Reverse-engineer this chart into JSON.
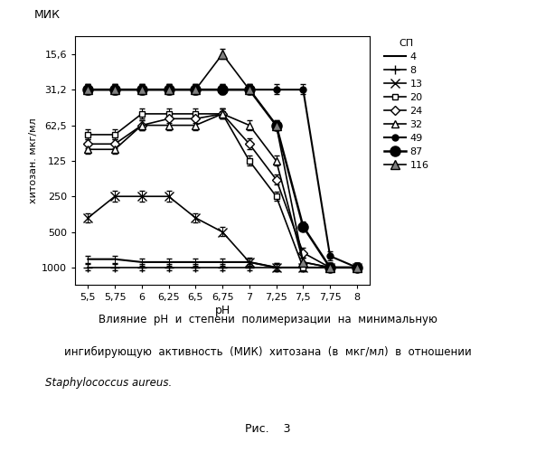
{
  "title_top": "МИК",
  "ylabel": "хитозан. мкг/мл",
  "xlabel": "pH",
  "legend_title": "СП",
  "yticks": [
    15.6,
    31.2,
    62.5,
    125,
    250,
    500,
    1000
  ],
  "ytick_labels": [
    "15,6",
    "31,2",
    "62,5",
    "125",
    "250",
    "500",
    "1000"
  ],
  "xticks": [
    5.5,
    5.75,
    6.0,
    6.25,
    6.5,
    6.75,
    7.0,
    7.25,
    7.5,
    7.75,
    8.0
  ],
  "xtick_labels": [
    "5,5",
    "5,75",
    "6",
    "6,25",
    "6,5",
    "6,75",
    "7",
    "7,25",
    "7,5",
    "7,75",
    "8"
  ],
  "caption_line1": "Влияние  pH  и  степени  полимеризации  на  минимальную",
  "caption_line2": "ингибирующую  активность  (МИК)  хитозана  (в  мкг/мл)  в  отношении",
  "caption_line3": "Staphylococcus aureus.",
  "fig_label": "Рис.    3",
  "series": [
    {
      "label": "4",
      "marker": "None",
      "markerfacecolor": "white",
      "markersize": 5,
      "linewidth": 1.5,
      "x": [
        5.5,
        5.75,
        6.0,
        6.25,
        6.5,
        6.75,
        7.0,
        7.25,
        7.5,
        7.75,
        8.0
      ],
      "y": [
        850,
        850,
        900,
        900,
        900,
        900,
        900,
        1000,
        1000,
        1000,
        1000
      ],
      "yerr": [
        60,
        60,
        60,
        60,
        60,
        60,
        60,
        80,
        80,
        80,
        80
      ]
    },
    {
      "label": "8",
      "marker": "+",
      "markerfacecolor": "white",
      "markersize": 7,
      "linewidth": 1.2,
      "x": [
        5.5,
        5.75,
        6.0,
        6.25,
        6.5,
        6.75,
        7.0,
        7.25,
        7.5,
        7.75,
        8.0
      ],
      "y": [
        1000,
        1000,
        1000,
        1000,
        1000,
        1000,
        1000,
        1000,
        1000,
        1000,
        1000
      ],
      "yerr": [
        60,
        60,
        60,
        60,
        60,
        60,
        60,
        60,
        60,
        60,
        60
      ]
    },
    {
      "label": "13",
      "marker": "x",
      "markerfacecolor": "white",
      "markersize": 7,
      "linewidth": 1.2,
      "x": [
        5.5,
        5.75,
        6.0,
        6.25,
        6.5,
        6.75,
        7.0,
        7.25,
        7.5,
        7.75,
        8.0
      ],
      "y": [
        380,
        250,
        250,
        250,
        380,
        500,
        900,
        1000,
        1000,
        1000,
        1000
      ],
      "yerr": [
        35,
        25,
        25,
        25,
        35,
        45,
        70,
        80,
        80,
        80,
        80
      ]
    },
    {
      "label": "20",
      "marker": "s",
      "markerfacecolor": "white",
      "markersize": 5,
      "linewidth": 1.2,
      "x": [
        5.5,
        5.75,
        6.0,
        6.25,
        6.5,
        6.75,
        7.0,
        7.25,
        7.5,
        7.75,
        8.0
      ],
      "y": [
        75,
        75,
        50,
        50,
        50,
        50,
        125,
        250,
        1000,
        1000,
        1000
      ],
      "yerr": [
        7,
        7,
        5,
        5,
        5,
        5,
        12,
        22,
        80,
        80,
        80
      ]
    },
    {
      "label": "24",
      "marker": "D",
      "markerfacecolor": "white",
      "markersize": 5,
      "linewidth": 1.2,
      "x": [
        5.5,
        5.75,
        6.0,
        6.25,
        6.5,
        6.75,
        7.0,
        7.25,
        7.5,
        7.75,
        8.0
      ],
      "y": [
        90,
        90,
        62.5,
        55,
        55,
        50,
        90,
        180,
        750,
        1000,
        1000
      ],
      "yerr": [
        8,
        8,
        6,
        5,
        5,
        5,
        9,
        18,
        70,
        80,
        80
      ]
    },
    {
      "label": "32",
      "marker": "^",
      "markerfacecolor": "white",
      "markersize": 6,
      "linewidth": 1.2,
      "x": [
        5.5,
        5.75,
        6.0,
        6.25,
        6.5,
        6.75,
        7.0,
        7.25,
        7.5,
        7.75,
        8.0
      ],
      "y": [
        100,
        100,
        62.5,
        62.5,
        62.5,
        50,
        62.5,
        125,
        900,
        1000,
        1000
      ],
      "yerr": [
        9,
        9,
        6,
        6,
        6,
        5,
        6,
        12,
        75,
        80,
        80
      ]
    },
    {
      "label": "49",
      "marker": "o",
      "markerfacecolor": "black",
      "markersize": 5,
      "linewidth": 1.5,
      "x": [
        5.5,
        5.75,
        6.0,
        6.25,
        6.5,
        6.75,
        7.0,
        7.25,
        7.5,
        7.75,
        8.0
      ],
      "y": [
        31.2,
        31.2,
        31.2,
        31.2,
        31.2,
        31.2,
        31.2,
        31.2,
        31.2,
        800,
        1000
      ],
      "yerr": [
        3,
        3,
        3,
        3,
        3,
        3,
        3,
        3,
        3,
        70,
        80
      ]
    },
    {
      "label": "87",
      "marker": "o",
      "markerfacecolor": "black",
      "markersize": 8,
      "linewidth": 1.8,
      "x": [
        5.5,
        5.75,
        6.0,
        6.25,
        6.5,
        6.75,
        7.0,
        7.25,
        7.5,
        7.75,
        8.0
      ],
      "y": [
        31.2,
        31.2,
        31.2,
        31.2,
        31.2,
        31.2,
        31.2,
        62.5,
        450,
        1000,
        1000
      ],
      "yerr": [
        3,
        3,
        3,
        3,
        3,
        3,
        3,
        6,
        40,
        80,
        80
      ]
    },
    {
      "label": "116",
      "marker": "^",
      "markerfacecolor": "gray",
      "markersize": 7,
      "linewidth": 1.2,
      "x": [
        5.5,
        5.75,
        6.0,
        6.25,
        6.5,
        6.75,
        7.0,
        7.25,
        7.5,
        7.75,
        8.0
      ],
      "y": [
        31.2,
        31.2,
        31.2,
        31.2,
        31.2,
        15.6,
        31.2,
        62.5,
        900,
        1000,
        1000
      ],
      "yerr": [
        3,
        3,
        3,
        3,
        3,
        1.5,
        3,
        6,
        75,
        80,
        80
      ]
    }
  ]
}
